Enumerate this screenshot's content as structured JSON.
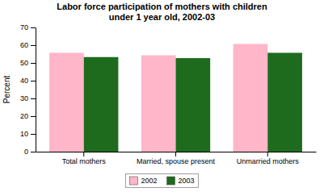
{
  "chart_data": {
    "type": "bar",
    "title": "Labor force participation of mothers with children\nunder 1 year old, 2002-03",
    "categories": [
      "Total mothers",
      "Married, spouse present",
      "Unmarried mothers"
    ],
    "series": [
      {
        "name": "2002",
        "color": "#FFB6C8",
        "values": [
          55.7,
          54.3,
          60.7
        ]
      },
      {
        "name": "2003",
        "color": "#1E6B1E",
        "values": [
          53.3,
          52.7,
          55.7
        ]
      }
    ],
    "ylabel": "Percent",
    "ylim": [
      0,
      70
    ],
    "yticks": [
      0,
      10,
      20,
      30,
      40,
      50,
      60,
      70
    ],
    "grid": false,
    "legend": "bottom"
  }
}
